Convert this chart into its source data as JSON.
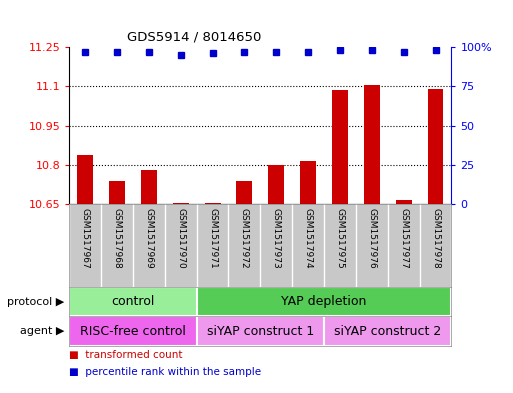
{
  "title": "GDS5914 / 8014650",
  "samples": [
    "GSM1517967",
    "GSM1517968",
    "GSM1517969",
    "GSM1517970",
    "GSM1517971",
    "GSM1517972",
    "GSM1517973",
    "GSM1517974",
    "GSM1517975",
    "GSM1517976",
    "GSM1517977",
    "GSM1517978"
  ],
  "bar_values": [
    10.84,
    10.74,
    10.78,
    10.655,
    10.657,
    10.74,
    10.802,
    10.814,
    11.085,
    11.105,
    10.667,
    11.09
  ],
  "dot_values": [
    97,
    97,
    97,
    95,
    96,
    97,
    97,
    97,
    98,
    98,
    97,
    98
  ],
  "bar_color": "#cc0000",
  "dot_color": "#0000cc",
  "ylim_left": [
    10.65,
    11.25
  ],
  "ylim_right": [
    0,
    100
  ],
  "yticks_left": [
    10.65,
    10.8,
    10.95,
    11.1,
    11.25
  ],
  "yticks_right": [
    0,
    25,
    50,
    75,
    100
  ],
  "ytick_labels_left": [
    "10.65",
    "10.8",
    "10.95",
    "11.1",
    "11.25"
  ],
  "ytick_labels_right": [
    "0",
    "25",
    "50",
    "75",
    "100%"
  ],
  "protocol_labels": [
    {
      "text": "control",
      "start": 0,
      "end": 3,
      "color": "#99ee99"
    },
    {
      "text": "YAP depletion",
      "start": 4,
      "end": 11,
      "color": "#55cc55"
    }
  ],
  "agent_labels": [
    {
      "text": "RISC-free control",
      "start": 0,
      "end": 3,
      "color": "#ee66ee"
    },
    {
      "text": "siYAP construct 1",
      "start": 4,
      "end": 7,
      "color": "#ee99ee"
    },
    {
      "text": "siYAP construct 2",
      "start": 8,
      "end": 11,
      "color": "#ee99ee"
    }
  ],
  "legend_items": [
    {
      "label": "transformed count",
      "color": "#cc0000"
    },
    {
      "label": "percentile rank within the sample",
      "color": "#0000cc"
    }
  ],
  "protocol_row_label": "protocol",
  "agent_row_label": "agent",
  "bar_baseline": 10.65,
  "xlabels_bg": "#c8c8c8",
  "xlabels_sep_color": "#ffffff",
  "bar_width": 0.5
}
